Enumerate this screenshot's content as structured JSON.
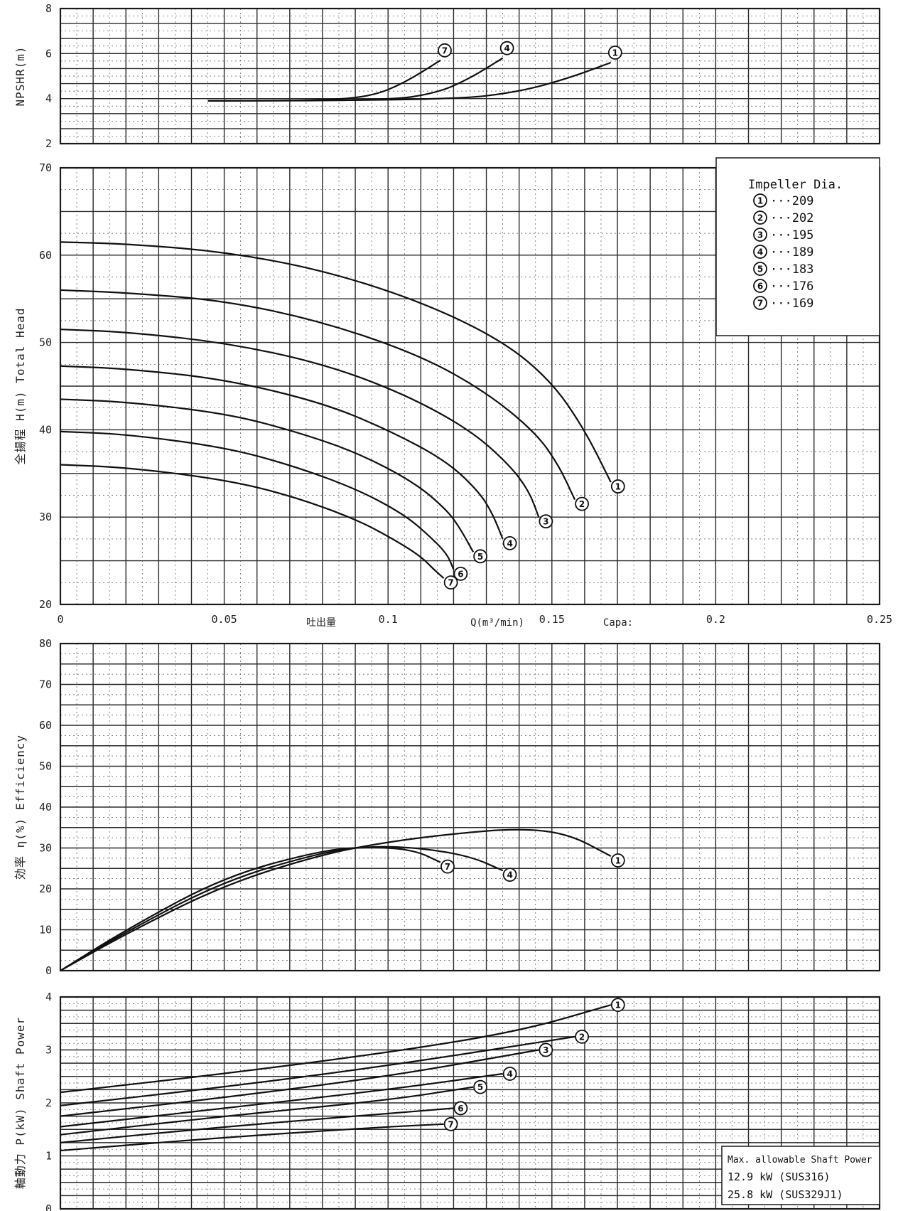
{
  "chart_data": [
    {
      "id": "npshr",
      "type": "line",
      "ylabel": "NPSHR(m)",
      "ylim": [
        2,
        8
      ],
      "yticks": [
        2,
        4,
        6,
        8
      ],
      "xlim": [
        0,
        0.25
      ],
      "series": [
        {
          "name": "7",
          "x": [
            0.045,
            0.08,
            0.095,
            0.105,
            0.116
          ],
          "y": [
            3.9,
            3.92,
            4.1,
            4.7,
            5.7
          ]
        },
        {
          "name": "4",
          "x": [
            0.045,
            0.1,
            0.115,
            0.125,
            0.135
          ],
          "y": [
            3.9,
            3.92,
            4.25,
            4.9,
            5.8
          ]
        },
        {
          "name": "1",
          "x": [
            0.045,
            0.12,
            0.14,
            0.155,
            0.168
          ],
          "y": [
            3.9,
            3.95,
            4.3,
            4.9,
            5.6
          ]
        }
      ]
    },
    {
      "id": "head",
      "type": "line",
      "ylabel": "全揚程   H(m)   Total  Head",
      "ylim": [
        20,
        70
      ],
      "yticks": [
        20,
        30,
        40,
        50,
        60,
        70
      ],
      "xlim": [
        0,
        0.25
      ],
      "xticks": [
        0,
        0.05,
        0.1,
        0.15,
        0.2,
        0.25
      ],
      "xticklabels": [
        "0",
        "0.05",
        "0.1",
        "0.15",
        "0.2",
        "0.25"
      ],
      "xlabel_jp": "吐出量",
      "xlabel_unit": "Q(m³/min)",
      "xlabel_en": "Capa: ",
      "series": [
        {
          "name": "1",
          "x": [
            0,
            0.02,
            0.05,
            0.08,
            0.11,
            0.135,
            0.15,
            0.16,
            0.168
          ],
          "y": [
            61.5,
            61.3,
            60.4,
            58.3,
            54.7,
            50.2,
            45.5,
            40.0,
            34.0
          ]
        },
        {
          "name": "2",
          "x": [
            0,
            0.02,
            0.05,
            0.08,
            0.11,
            0.13,
            0.145,
            0.152,
            0.157
          ],
          "y": [
            56.0,
            55.7,
            54.8,
            52.4,
            48.5,
            44.3,
            39.7,
            36.0,
            32.0
          ]
        },
        {
          "name": "3",
          "x": [
            0,
            0.02,
            0.05,
            0.08,
            0.105,
            0.125,
            0.137,
            0.143,
            0.146
          ],
          "y": [
            51.5,
            51.2,
            50.0,
            47.6,
            44.1,
            40.0,
            36.0,
            33.0,
            30.0
          ]
        },
        {
          "name": "4",
          "x": [
            0,
            0.02,
            0.05,
            0.08,
            0.1,
            0.118,
            0.128,
            0.132,
            0.135
          ],
          "y": [
            47.3,
            47.0,
            45.8,
            43.1,
            40.0,
            36.4,
            32.8,
            30.3,
            27.5
          ]
        },
        {
          "name": "5",
          "x": [
            0,
            0.02,
            0.05,
            0.07,
            0.09,
            0.108,
            0.118,
            0.122,
            0.126
          ],
          "y": [
            43.5,
            43.2,
            41.9,
            40.0,
            37.5,
            34.0,
            30.8,
            28.7,
            26.0
          ]
        },
        {
          "name": "6",
          "x": [
            0,
            0.02,
            0.05,
            0.07,
            0.09,
            0.105,
            0.113,
            0.118,
            0.12
          ],
          "y": [
            39.8,
            39.5,
            38.0,
            36.0,
            33.3,
            30.3,
            27.7,
            25.8,
            24.0
          ]
        },
        {
          "name": "7",
          "x": [
            0,
            0.02,
            0.05,
            0.07,
            0.09,
            0.102,
            0.11,
            0.114,
            0.117
          ],
          "y": [
            36.0,
            35.7,
            34.3,
            32.5,
            29.8,
            27.4,
            25.5,
            24.0,
            23.0
          ]
        }
      ],
      "legend": {
        "title": "Impeller Dia.",
        "items": [
          {
            "mark": "1",
            "value": "209"
          },
          {
            "mark": "2",
            "value": "202"
          },
          {
            "mark": "3",
            "value": "195"
          },
          {
            "mark": "4",
            "value": "189"
          },
          {
            "mark": "5",
            "value": "183"
          },
          {
            "mark": "6",
            "value": "176"
          },
          {
            "mark": "7",
            "value": "169"
          }
        ]
      }
    },
    {
      "id": "efficiency",
      "type": "line",
      "ylabel": "効率   η(%)   Efficiency",
      "ylim": [
        0,
        80
      ],
      "yticks": [
        0,
        10,
        20,
        30,
        40,
        50,
        60,
        70,
        80
      ],
      "xlim": [
        0,
        0.25
      ],
      "series": [
        {
          "name": "1",
          "x": [
            0,
            0.02,
            0.05,
            0.08,
            0.1,
            0.12,
            0.14,
            0.155,
            0.168
          ],
          "y": [
            0,
            9,
            21,
            28.5,
            31.5,
            33.5,
            34.8,
            33.5,
            28.0
          ]
        },
        {
          "name": "4",
          "x": [
            0,
            0.02,
            0.05,
            0.08,
            0.095,
            0.11,
            0.125,
            0.135
          ],
          "y": [
            0,
            9.5,
            22,
            29,
            30.5,
            30.0,
            28.0,
            24.5
          ]
        },
        {
          "name": "7",
          "x": [
            0,
            0.02,
            0.05,
            0.08,
            0.095,
            0.108,
            0.116
          ],
          "y": [
            0,
            10,
            23,
            29.5,
            30.3,
            29.5,
            26.5
          ]
        }
      ]
    },
    {
      "id": "power",
      "type": "line",
      "ylabel": "軸動力  P(kW)   Shaft Power",
      "ylim": [
        0,
        4
      ],
      "yticks": [
        0,
        1,
        2,
        3,
        4
      ],
      "xlim": [
        0,
        0.25
      ],
      "series": [
        {
          "name": "1",
          "x": [
            0,
            0.05,
            0.1,
            0.14,
            0.168
          ],
          "y": [
            2.2,
            2.55,
            2.95,
            3.35,
            3.85
          ]
        },
        {
          "name": "2",
          "x": [
            0,
            0.05,
            0.1,
            0.157
          ],
          "y": [
            1.95,
            2.3,
            2.7,
            3.25
          ]
        },
        {
          "name": "3",
          "x": [
            0,
            0.05,
            0.1,
            0.146
          ],
          "y": [
            1.75,
            2.1,
            2.5,
            3.0
          ]
        },
        {
          "name": "4",
          "x": [
            0,
            0.05,
            0.1,
            0.135
          ],
          "y": [
            1.55,
            1.9,
            2.25,
            2.55
          ]
        },
        {
          "name": "5",
          "x": [
            0,
            0.05,
            0.1,
            0.126
          ],
          "y": [
            1.4,
            1.75,
            2.05,
            2.3
          ]
        },
        {
          "name": "6",
          "x": [
            0,
            0.05,
            0.1,
            0.12
          ],
          "y": [
            1.25,
            1.55,
            1.8,
            1.9
          ]
        },
        {
          "name": "7",
          "x": [
            0,
            0.05,
            0.1,
            0.117
          ],
          "y": [
            1.1,
            1.35,
            1.55,
            1.6
          ]
        }
      ],
      "note": {
        "title": "Max. allowable Shaft Power",
        "lines": [
          "12.9 kW (SUS316)",
          "25.8 kW (SUS329J1)"
        ]
      }
    }
  ]
}
